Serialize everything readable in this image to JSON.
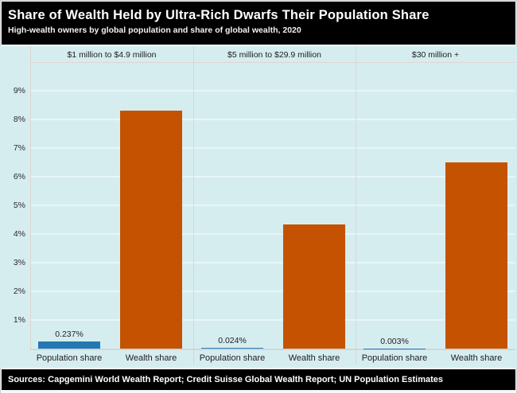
{
  "chart": {
    "title": "Share of Wealth Held by Ultra-Rich Dwarfs Their Population Share",
    "subtitle": "High-wealth owners by global population and share of global wealth, 2020",
    "source": "Sources: Capgemini World Wealth Report; Credit Suisse Global Wealth Report; UN Population Estimates"
  },
  "chart_data": {
    "type": "bar",
    "title": "Share of Wealth Held by Ultra-Rich Dwarfs Their Population Share",
    "subtitle": "High-wealth owners by global population and share of global wealth, 2020",
    "source_note": "Sources: Capgemini World Wealth Report; Credit Suisse Global Wealth Report; UN Population Estimates",
    "unit": "percent of global total",
    "ylim": [
      0,
      9.6
    ],
    "grid": true,
    "yticks": [
      {
        "value": 1,
        "label": "1%"
      },
      {
        "value": 2,
        "label": "2%"
      },
      {
        "value": 3,
        "label": "3%"
      },
      {
        "value": 4,
        "label": "4%"
      },
      {
        "value": 5,
        "label": "5%"
      },
      {
        "value": 6,
        "label": "6%"
      },
      {
        "value": 7,
        "label": "7%"
      },
      {
        "value": 8,
        "label": "8%"
      },
      {
        "value": 9,
        "label": "9%"
      }
    ],
    "colors": {
      "population": "#2577b2",
      "wealth": "#c55200",
      "plot_background": "#d6edf0",
      "band_background": "#000000"
    },
    "groups": [
      {
        "category": "$1 million to $4.9 million",
        "bars": [
          {
            "label": "Population share",
            "value": 0.237,
            "value_label": "0.237%",
            "color_key": "population"
          },
          {
            "label": "Wealth share",
            "value": 8.3,
            "color_key": "wealth"
          }
        ]
      },
      {
        "category": "$5 million to $29.9 million",
        "bars": [
          {
            "label": "Population share",
            "value": 0.024,
            "value_label": "0.024%",
            "color_key": "population"
          },
          {
            "label": "Wealth share",
            "value": 4.33,
            "color_key": "wealth"
          }
        ]
      },
      {
        "category": "$30 million +",
        "bars": [
          {
            "label": "Population share",
            "value": 0.003,
            "value_label": "0.003%",
            "color_key": "population"
          },
          {
            "label": "Wealth share",
            "value": 6.5,
            "color_key": "wealth"
          }
        ]
      }
    ]
  }
}
